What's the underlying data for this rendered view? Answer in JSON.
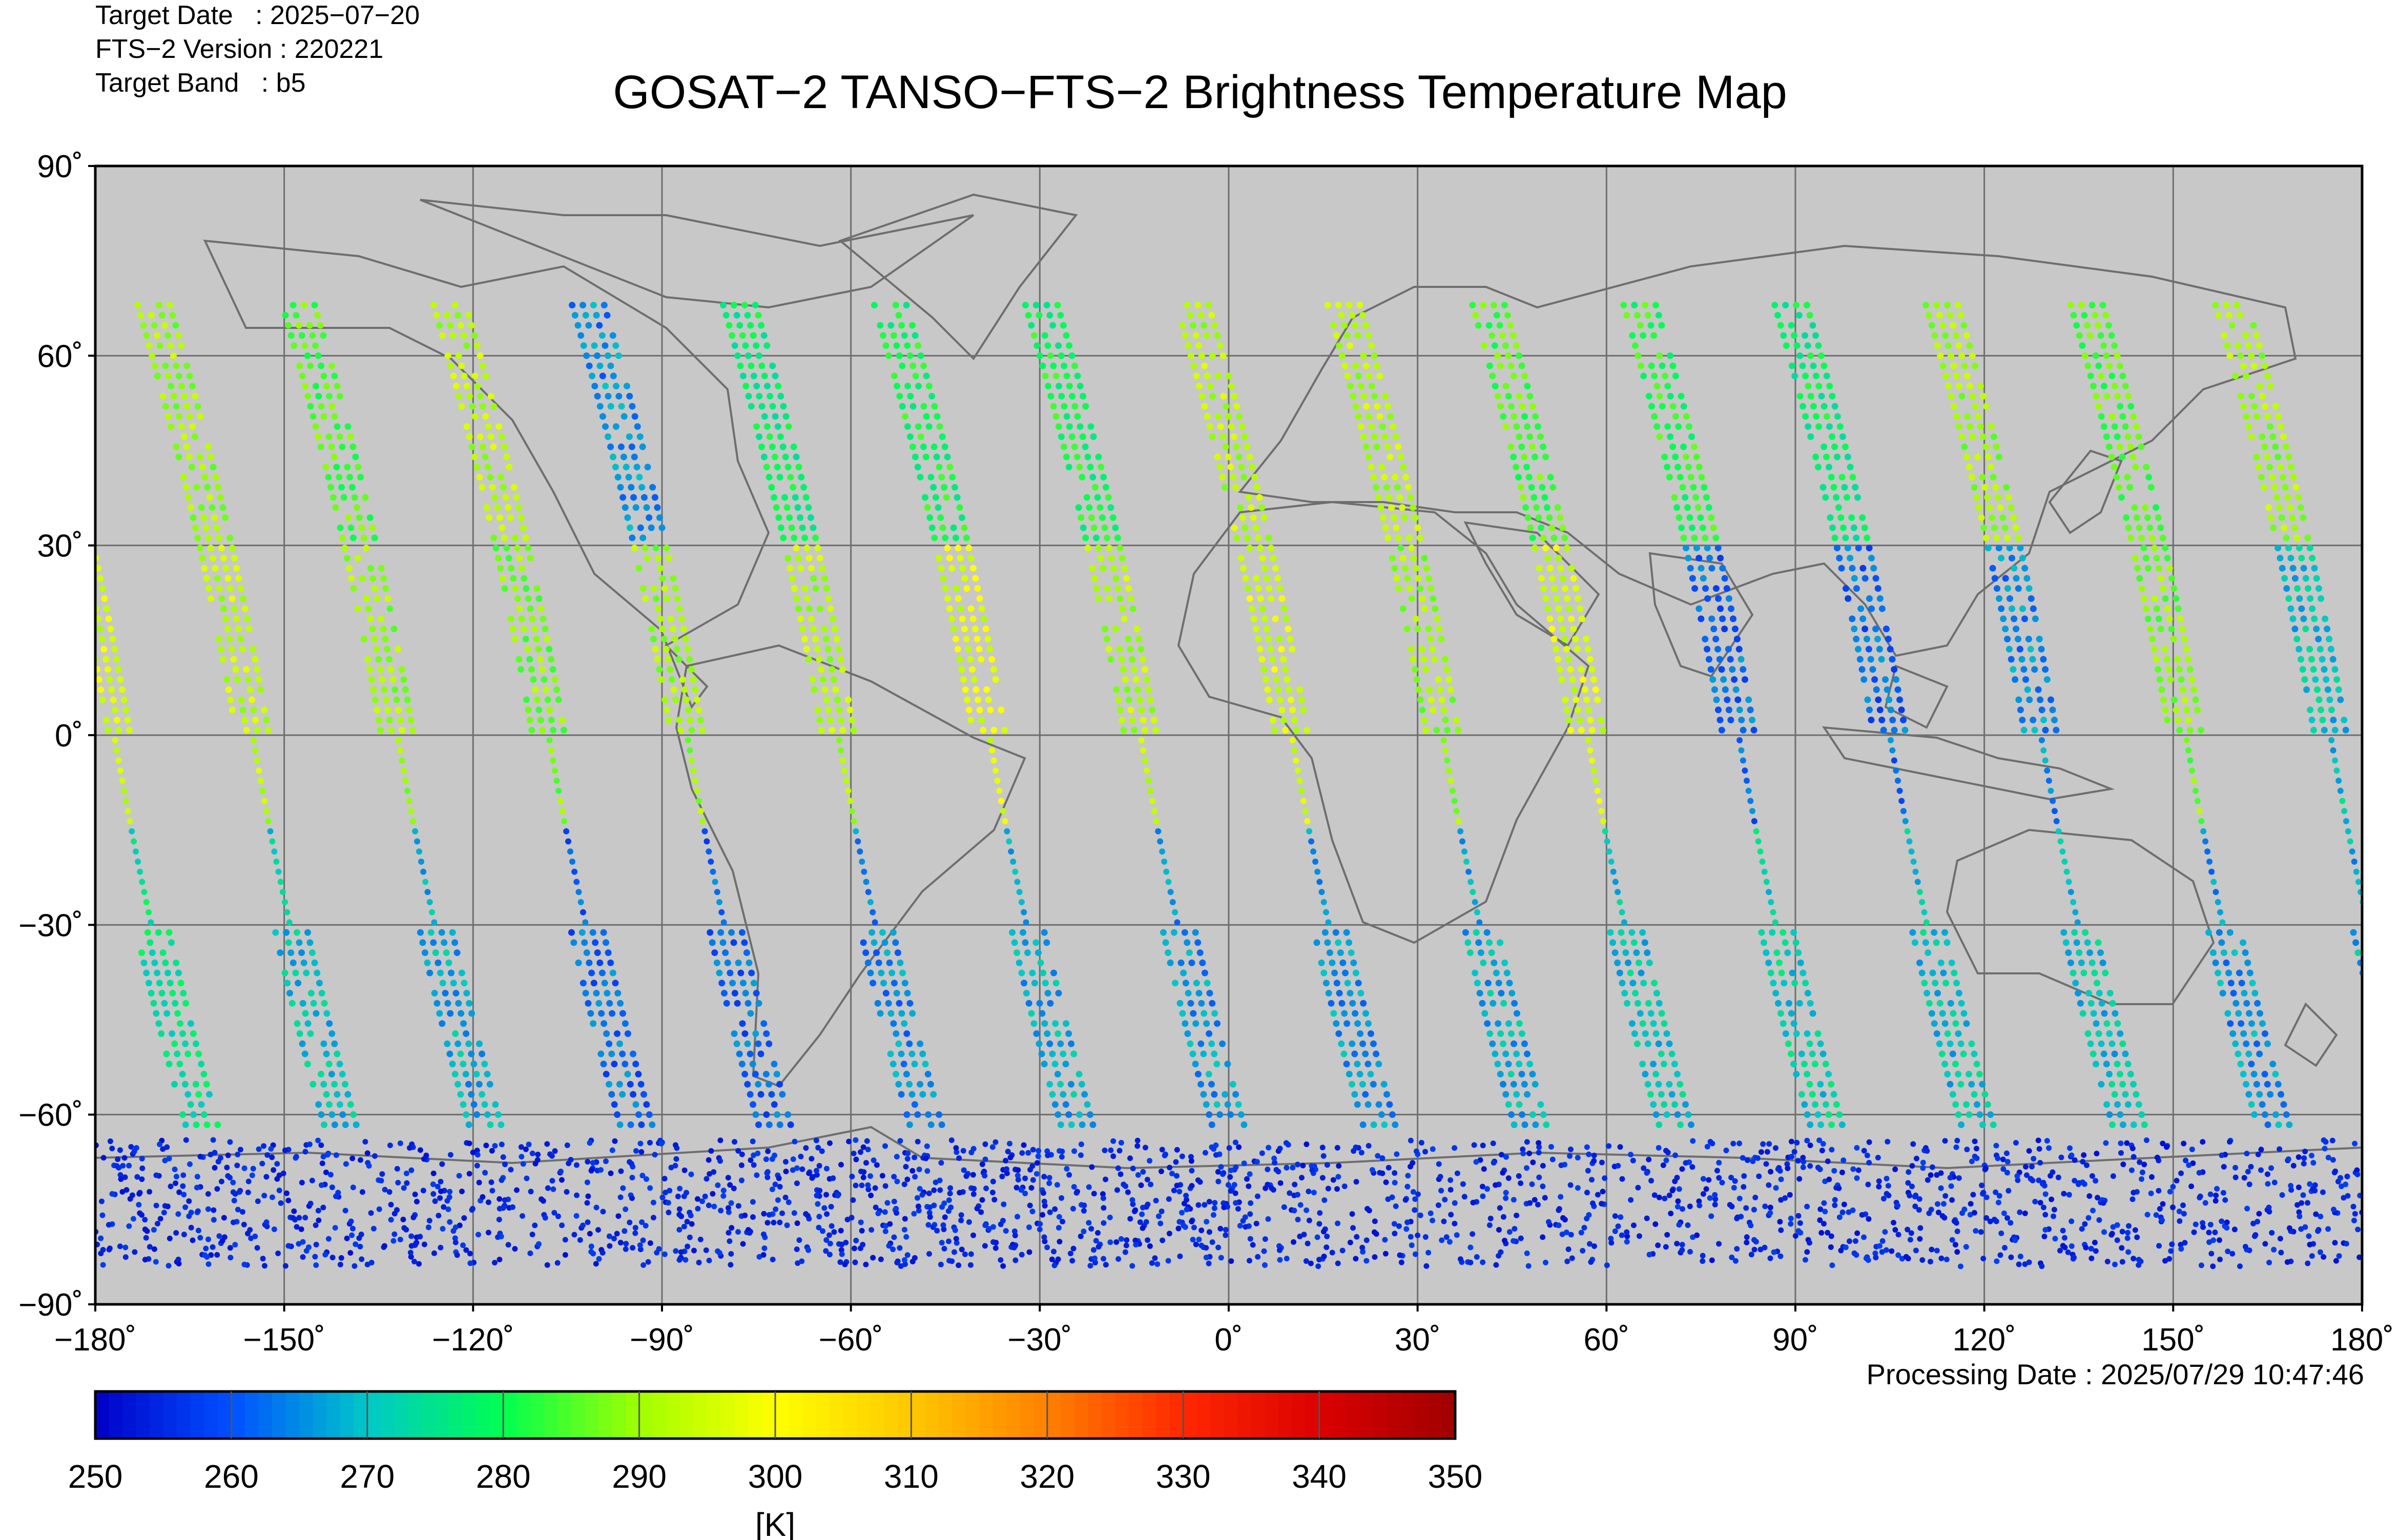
{
  "header": {
    "target_date": "Target Date   : 2025−07−20",
    "version": "FTS−2 Version : 220221",
    "band": "Target Band   : b5",
    "title": "GOSAT−2 TANSO−FTS−2 Brightness Temperature Map",
    "processing_date": "Processing Date : 2025/07/29 10:47:46"
  },
  "map": {
    "background": "#c8c8c8",
    "frame": "#000000",
    "lon_ticks": [
      "−180˚",
      "−150˚",
      "−120˚",
      "−90˚",
      "−60˚",
      "−30˚",
      "0˚",
      "30˚",
      "60˚",
      "90˚",
      "120˚",
      "150˚",
      "180˚"
    ],
    "lat_ticks": [
      "90˚",
      "60˚",
      "30˚",
      "0˚",
      "−30˚",
      "−60˚",
      "−90˚"
    ]
  },
  "colorbar": {
    "ticks": [
      "250",
      "260",
      "270",
      "280",
      "290",
      "300",
      "310",
      "320",
      "330",
      "340",
      "350"
    ],
    "unit": "[K]",
    "min": 250,
    "max": 350,
    "colors": [
      "#0000c8",
      "#0050ff",
      "#00c8c8",
      "#00ff50",
      "#a0ff00",
      "#ffff00",
      "#ffc800",
      "#ff8000",
      "#ff2000",
      "#c80000"
    ]
  },
  "chart_data": {
    "type": "scatter",
    "title": "GOSAT−2 TANSO−FTS−2 Brightness Temperature Map",
    "xlabel": "",
    "ylabel": "",
    "xlim": [
      -180,
      180
    ],
    "ylim": [
      -90,
      90
    ],
    "color_scale": {
      "min": 250,
      "max": 350,
      "unit": "[K]"
    },
    "orbit_tracks": [
      {
        "equator_lon": -177,
        "temp_north": 285,
        "temp_tropic": 295,
        "temp_south": 275
      },
      {
        "equator_lon": -155,
        "temp_north": 290,
        "temp_tropic": 293,
        "temp_south": 270
      },
      {
        "equator_lon": -132,
        "temp_north": 285,
        "temp_tropic": 290,
        "temp_south": 268
      },
      {
        "equator_lon": -108,
        "temp_north": 292,
        "temp_tropic": 288,
        "temp_south": 262
      },
      {
        "equator_lon": -86,
        "temp_north": 265,
        "temp_tropic": 290,
        "temp_south": 262
      },
      {
        "equator_lon": -62,
        "temp_north": 278,
        "temp_tropic": 292,
        "temp_south": 265
      },
      {
        "equator_lon": -38,
        "temp_north": 280,
        "temp_tropic": 296,
        "temp_south": 268
      },
      {
        "equator_lon": -14,
        "temp_north": 280,
        "temp_tropic": 292,
        "temp_south": 266
      },
      {
        "equator_lon": 10,
        "temp_north": 292,
        "temp_tropic": 295,
        "temp_south": 266
      },
      {
        "equator_lon": 34,
        "temp_north": 292,
        "temp_tropic": 290,
        "temp_south": 268
      },
      {
        "equator_lon": 57,
        "temp_north": 285,
        "temp_tropic": 295,
        "temp_south": 270
      },
      {
        "equator_lon": 81,
        "temp_north": 282,
        "temp_tropic": 262,
        "temp_south": 272
      },
      {
        "equator_lon": 105,
        "temp_north": 278,
        "temp_tropic": 262,
        "temp_south": 270
      },
      {
        "equator_lon": 129,
        "temp_north": 290,
        "temp_tropic": 265,
        "temp_south": 270
      },
      {
        "equator_lon": 152,
        "temp_north": 285,
        "temp_tropic": 288,
        "temp_south": 266
      },
      {
        "equator_lon": 175,
        "temp_north": 290,
        "temp_tropic": 270,
        "temp_south": 268
      }
    ],
    "antarctic_band_temp": 255
  }
}
